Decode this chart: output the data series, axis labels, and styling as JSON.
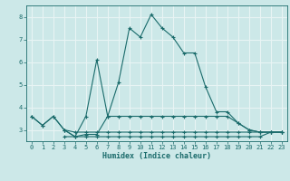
{
  "title": "",
  "xlabel": "Humidex (Indice chaleur)",
  "background_color": "#cce8e8",
  "grid_color": "#e8f4f4",
  "line_color": "#1a6b6b",
  "xlim": [
    -0.5,
    23.5
  ],
  "ylim": [
    2.5,
    8.5
  ],
  "xticks": [
    0,
    1,
    2,
    3,
    4,
    5,
    6,
    7,
    8,
    9,
    10,
    11,
    12,
    13,
    14,
    15,
    16,
    17,
    18,
    19,
    20,
    21,
    22,
    23
  ],
  "yticks": [
    3,
    4,
    5,
    6,
    7,
    8
  ],
  "series": [
    {
      "x": [
        0,
        1,
        2,
        3,
        4,
        5,
        6,
        7,
        8,
        9,
        10,
        11,
        12,
        13,
        14,
        15,
        16,
        17,
        18,
        19,
        20,
        21,
        22,
        23
      ],
      "y": [
        3.6,
        3.2,
        3.6,
        3.0,
        2.7,
        3.6,
        6.1,
        3.6,
        5.1,
        7.5,
        7.1,
        8.1,
        7.5,
        7.1,
        6.4,
        6.4,
        4.9,
        3.8,
        3.8,
        3.3,
        3.0,
        2.9,
        2.9,
        2.9
      ]
    },
    {
      "x": [
        0,
        1,
        2,
        3,
        4,
        5,
        6,
        7,
        8,
        9,
        10,
        11,
        12,
        13,
        14,
        15,
        16,
        17,
        18,
        19,
        20,
        21,
        22,
        23
      ],
      "y": [
        3.6,
        3.2,
        3.6,
        3.0,
        2.7,
        2.8,
        2.8,
        3.6,
        3.6,
        3.6,
        3.6,
        3.6,
        3.6,
        3.6,
        3.6,
        3.6,
        3.6,
        3.6,
        3.6,
        3.3,
        3.0,
        2.9,
        2.9,
        2.9
      ]
    },
    {
      "x": [
        3,
        4,
        5,
        6,
        7,
        8,
        9,
        10,
        11,
        12,
        13,
        14,
        15,
        16,
        17,
        18,
        19,
        20,
        21,
        22,
        23
      ],
      "y": [
        2.7,
        2.7,
        2.7,
        2.7,
        2.7,
        2.7,
        2.7,
        2.7,
        2.7,
        2.7,
        2.7,
        2.7,
        2.7,
        2.7,
        2.7,
        2.7,
        2.7,
        2.7,
        2.7,
        2.9,
        2.9
      ]
    },
    {
      "x": [
        3,
        4,
        5,
        6,
        7,
        8,
        9,
        10,
        11,
        12,
        13,
        14,
        15,
        16,
        17,
        18,
        19,
        20,
        21,
        22,
        23
      ],
      "y": [
        3.0,
        2.9,
        2.9,
        2.9,
        2.9,
        2.9,
        2.9,
        2.9,
        2.9,
        2.9,
        2.9,
        2.9,
        2.9,
        2.9,
        2.9,
        2.9,
        2.9,
        2.9,
        2.9,
        2.9,
        2.9
      ]
    }
  ]
}
